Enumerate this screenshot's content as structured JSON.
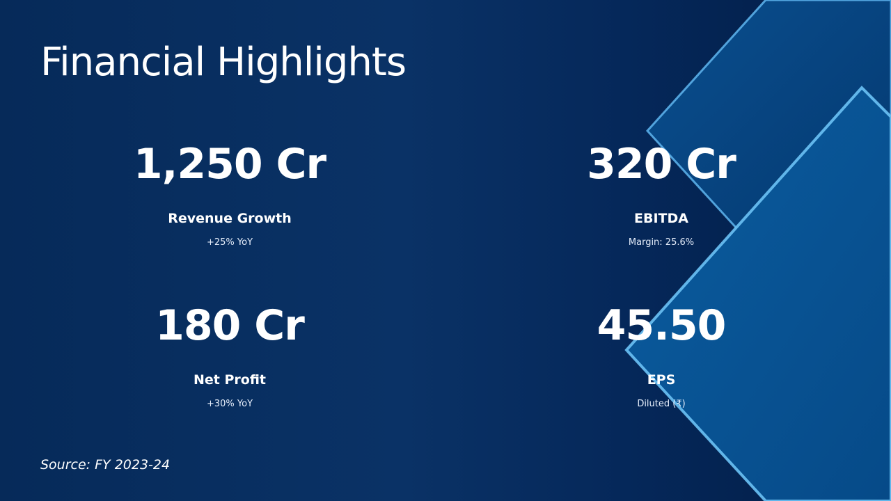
{
  "slide": {
    "title": "Financial Highlights",
    "source": "Source: FY 2023-24",
    "colors": {
      "background": "#082e60",
      "accent_outline": "#5fb6f0",
      "text": "#ffffff"
    },
    "metrics": [
      {
        "value": "1,250 Cr",
        "label": "Revenue Growth",
        "sub": "+25% YoY"
      },
      {
        "value": "320 Cr",
        "label": "EBITDA",
        "sub": "Margin: 25.6%"
      },
      {
        "value": "180 Cr",
        "label": "Net Profit",
        "sub": "+30% YoY"
      },
      {
        "value": "45.50",
        "label": "EPS",
        "sub": "Diluted (₹)"
      }
    ]
  }
}
